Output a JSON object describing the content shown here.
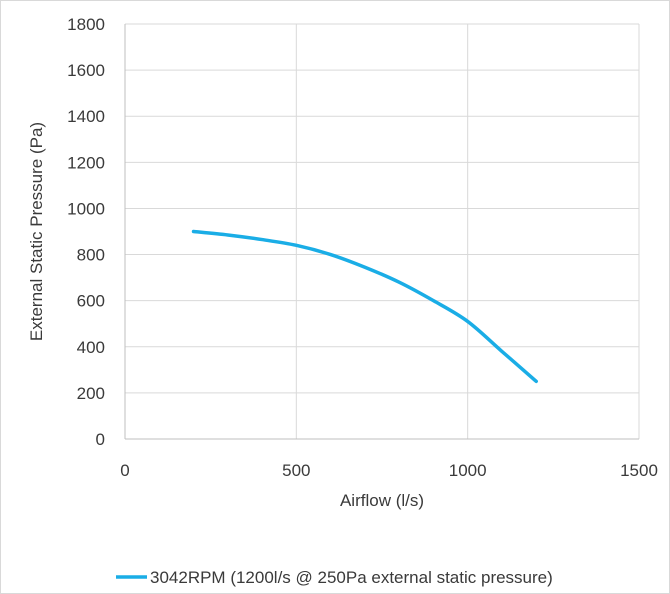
{
  "chart_data": {
    "type": "line",
    "xlabel": "Airflow (l/s)",
    "ylabel": "External Static Pressure (Pa)",
    "xlim": [
      0,
      1500
    ],
    "ylim": [
      0,
      1800
    ],
    "x_ticks": [
      0,
      500,
      1000,
      1500
    ],
    "y_ticks": [
      0,
      200,
      400,
      600,
      800,
      1000,
      1200,
      1400,
      1600,
      1800
    ],
    "grid": true,
    "legend_position": "bottom",
    "series": [
      {
        "name": "3042RPM (1200l/s @ 250Pa external static pressure)",
        "color": "#1aade6",
        "x": [
          200,
          300,
          400,
          500,
          600,
          700,
          800,
          900,
          1000,
          1100,
          1200
        ],
        "y": [
          900,
          885,
          865,
          840,
          800,
          745,
          680,
          600,
          510,
          380,
          250
        ]
      }
    ]
  }
}
